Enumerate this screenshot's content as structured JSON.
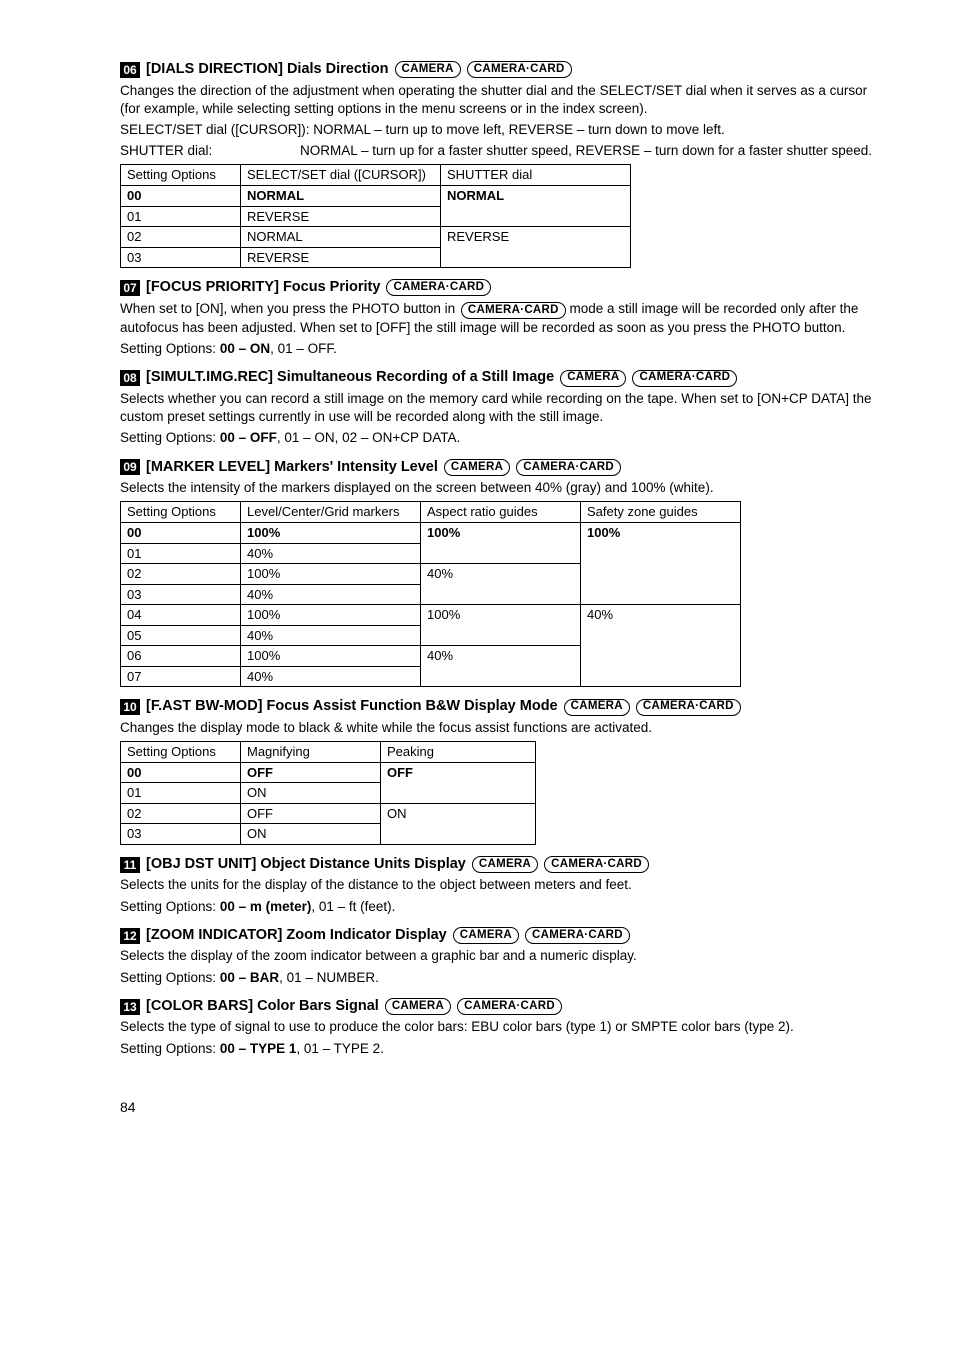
{
  "sections": {
    "s06": {
      "num": "06",
      "title_main": "[DIALS DIRECTION] Dials Direction",
      "badges": [
        "CAMERA",
        "CAMERA·CARD"
      ],
      "desc1": "Changes the direction of the adjustment when operating the shutter dial and the SELECT/SET dial when it serves as a cursor (for example, while selecting setting options in the menu screens or in the index screen).",
      "desc2": "SELECT/SET dial ([CURSOR]): NORMAL – turn up to move left, REVERSE – turn down to move left.",
      "desc3_label": "SHUTTER dial:",
      "desc3_val": "NORMAL – turn up for a faster shutter speed, REVERSE – turn down for a faster shutter speed.",
      "table": {
        "headers": [
          "Setting Options",
          "SELECT/SET dial ([CURSOR])",
          "SHUTTER dial"
        ],
        "rows": [
          {
            "c": [
              "00",
              "NORMAL",
              "NORMAL"
            ],
            "bold": true,
            "span": [
              1,
              1,
              2
            ]
          },
          {
            "c": [
              "01",
              "REVERSE",
              ""
            ],
            "span": [
              1,
              1,
              0
            ]
          },
          {
            "c": [
              "02",
              "NORMAL",
              "REVERSE"
            ],
            "span": [
              1,
              1,
              2
            ]
          },
          {
            "c": [
              "03",
              "REVERSE",
              ""
            ],
            "span": [
              1,
              1,
              0
            ]
          }
        ],
        "col_widths": [
          "120px",
          "200px",
          "190px"
        ]
      }
    },
    "s07": {
      "num": "07",
      "title_main": "[FOCUS PRIORITY] Focus Priority",
      "badges": [
        "CAMERA·CARD"
      ],
      "desc1a": "When set to [ON], when you press the PHOTO button in ",
      "inline_badge": "CAMERA·CARD",
      "desc1b": " mode a still image will be recorded only after the autofocus has been adjusted. When set to [OFF] the still image will be recorded as soon as you press the PHOTO button.",
      "options_prefix": "Setting Options: ",
      "options_bold": "00 – ON",
      "options_rest": ", 01 – OFF."
    },
    "s08": {
      "num": "08",
      "title_main": "[SIMULT.IMG.REC] Simultaneous Recording of a Still Image",
      "badges": [
        "CAMERA",
        "CAMERA·CARD"
      ],
      "desc1": "Selects whether you can record a still image on the memory card while recording on the tape. When set to [ON+CP DATA] the custom preset settings currently in use will be recorded along with the still image.",
      "options_prefix": "Setting Options: ",
      "options_bold": "00 – OFF",
      "options_rest": ", 01 – ON, 02 – ON+CP DATA."
    },
    "s09": {
      "num": "09",
      "title_main": "[MARKER LEVEL] Markers' Intensity Level",
      "badges": [
        "CAMERA",
        "CAMERA·CARD"
      ],
      "desc1": "Selects the intensity of the markers displayed on the screen between 40% (gray) and 100% (white).",
      "table": {
        "headers": [
          "Setting Options",
          "Level/Center/Grid markers",
          "Aspect ratio guides",
          "Safety zone guides"
        ],
        "rows": [
          {
            "c": [
              "00",
              "100%",
              "100%",
              "100%"
            ],
            "bold": true,
            "span": [
              1,
              1,
              2,
              4
            ]
          },
          {
            "c": [
              "01",
              "40%",
              "",
              ""
            ],
            "span": [
              1,
              1,
              0,
              0
            ]
          },
          {
            "c": [
              "02",
              "100%",
              "40%",
              ""
            ],
            "span": [
              1,
              1,
              2,
              0
            ]
          },
          {
            "c": [
              "03",
              "40%",
              "",
              ""
            ],
            "span": [
              1,
              1,
              0,
              0
            ]
          },
          {
            "c": [
              "04",
              "100%",
              "100%",
              "40%"
            ],
            "span": [
              1,
              1,
              2,
              4
            ]
          },
          {
            "c": [
              "05",
              "40%",
              "",
              ""
            ],
            "span": [
              1,
              1,
              0,
              0
            ]
          },
          {
            "c": [
              "06",
              "100%",
              "40%",
              ""
            ],
            "span": [
              1,
              1,
              2,
              0
            ]
          },
          {
            "c": [
              "07",
              "40%",
              "",
              ""
            ],
            "span": [
              1,
              1,
              0,
              0
            ]
          }
        ],
        "col_widths": [
          "120px",
          "180px",
          "160px",
          "160px"
        ]
      }
    },
    "s10": {
      "num": "10",
      "title_main": "[F.AST BW-MOD] Focus Assist Function B&W Display Mode",
      "badges": [
        "CAMERA",
        "CAMERA·CARD"
      ],
      "desc1": "Changes the display mode to black & white while the focus assist functions are activated.",
      "table": {
        "headers": [
          "Setting Options",
          "Magnifying",
          "Peaking"
        ],
        "rows": [
          {
            "c": [
              "00",
              "OFF",
              "OFF"
            ],
            "bold": true,
            "span": [
              1,
              1,
              2
            ]
          },
          {
            "c": [
              "01",
              "ON",
              ""
            ],
            "span": [
              1,
              1,
              0
            ]
          },
          {
            "c": [
              "02",
              "OFF",
              "ON"
            ],
            "span": [
              1,
              1,
              2
            ]
          },
          {
            "c": [
              "03",
              "ON",
              ""
            ],
            "span": [
              1,
              1,
              0
            ]
          }
        ],
        "col_widths": [
          "120px",
          "140px",
          "155px"
        ]
      }
    },
    "s11": {
      "num": "11",
      "title_main": "[OBJ DST UNIT] Object Distance Units Display",
      "badges": [
        "CAMERA",
        "CAMERA·CARD"
      ],
      "desc1": "Selects the units for the display of the distance to the object between meters and feet.",
      "options_prefix": "Setting Options: ",
      "options_bold": "00 – m (meter)",
      "options_rest": ", 01 – ft (feet)."
    },
    "s12": {
      "num": "12",
      "title_main": "[ZOOM INDICATOR] Zoom Indicator Display",
      "badges": [
        "CAMERA",
        "CAMERA·CARD"
      ],
      "desc1": "Selects the display of the zoom indicator between a graphic bar and a numeric display.",
      "options_prefix": "Setting Options: ",
      "options_bold": "00 – BAR",
      "options_rest": ", 01 – NUMBER."
    },
    "s13": {
      "num": "13",
      "title_main": "[COLOR BARS] Color Bars Signal",
      "badges": [
        "CAMERA",
        "CAMERA·CARD"
      ],
      "desc1": "Selects the type of signal to use to produce the color bars: EBU color bars (type 1) or SMPTE color bars (type 2).",
      "options_prefix": "Setting Options: ",
      "options_bold": "00 – TYPE 1",
      "options_rest": ", 01 – TYPE 2."
    }
  },
  "page_number": "84"
}
